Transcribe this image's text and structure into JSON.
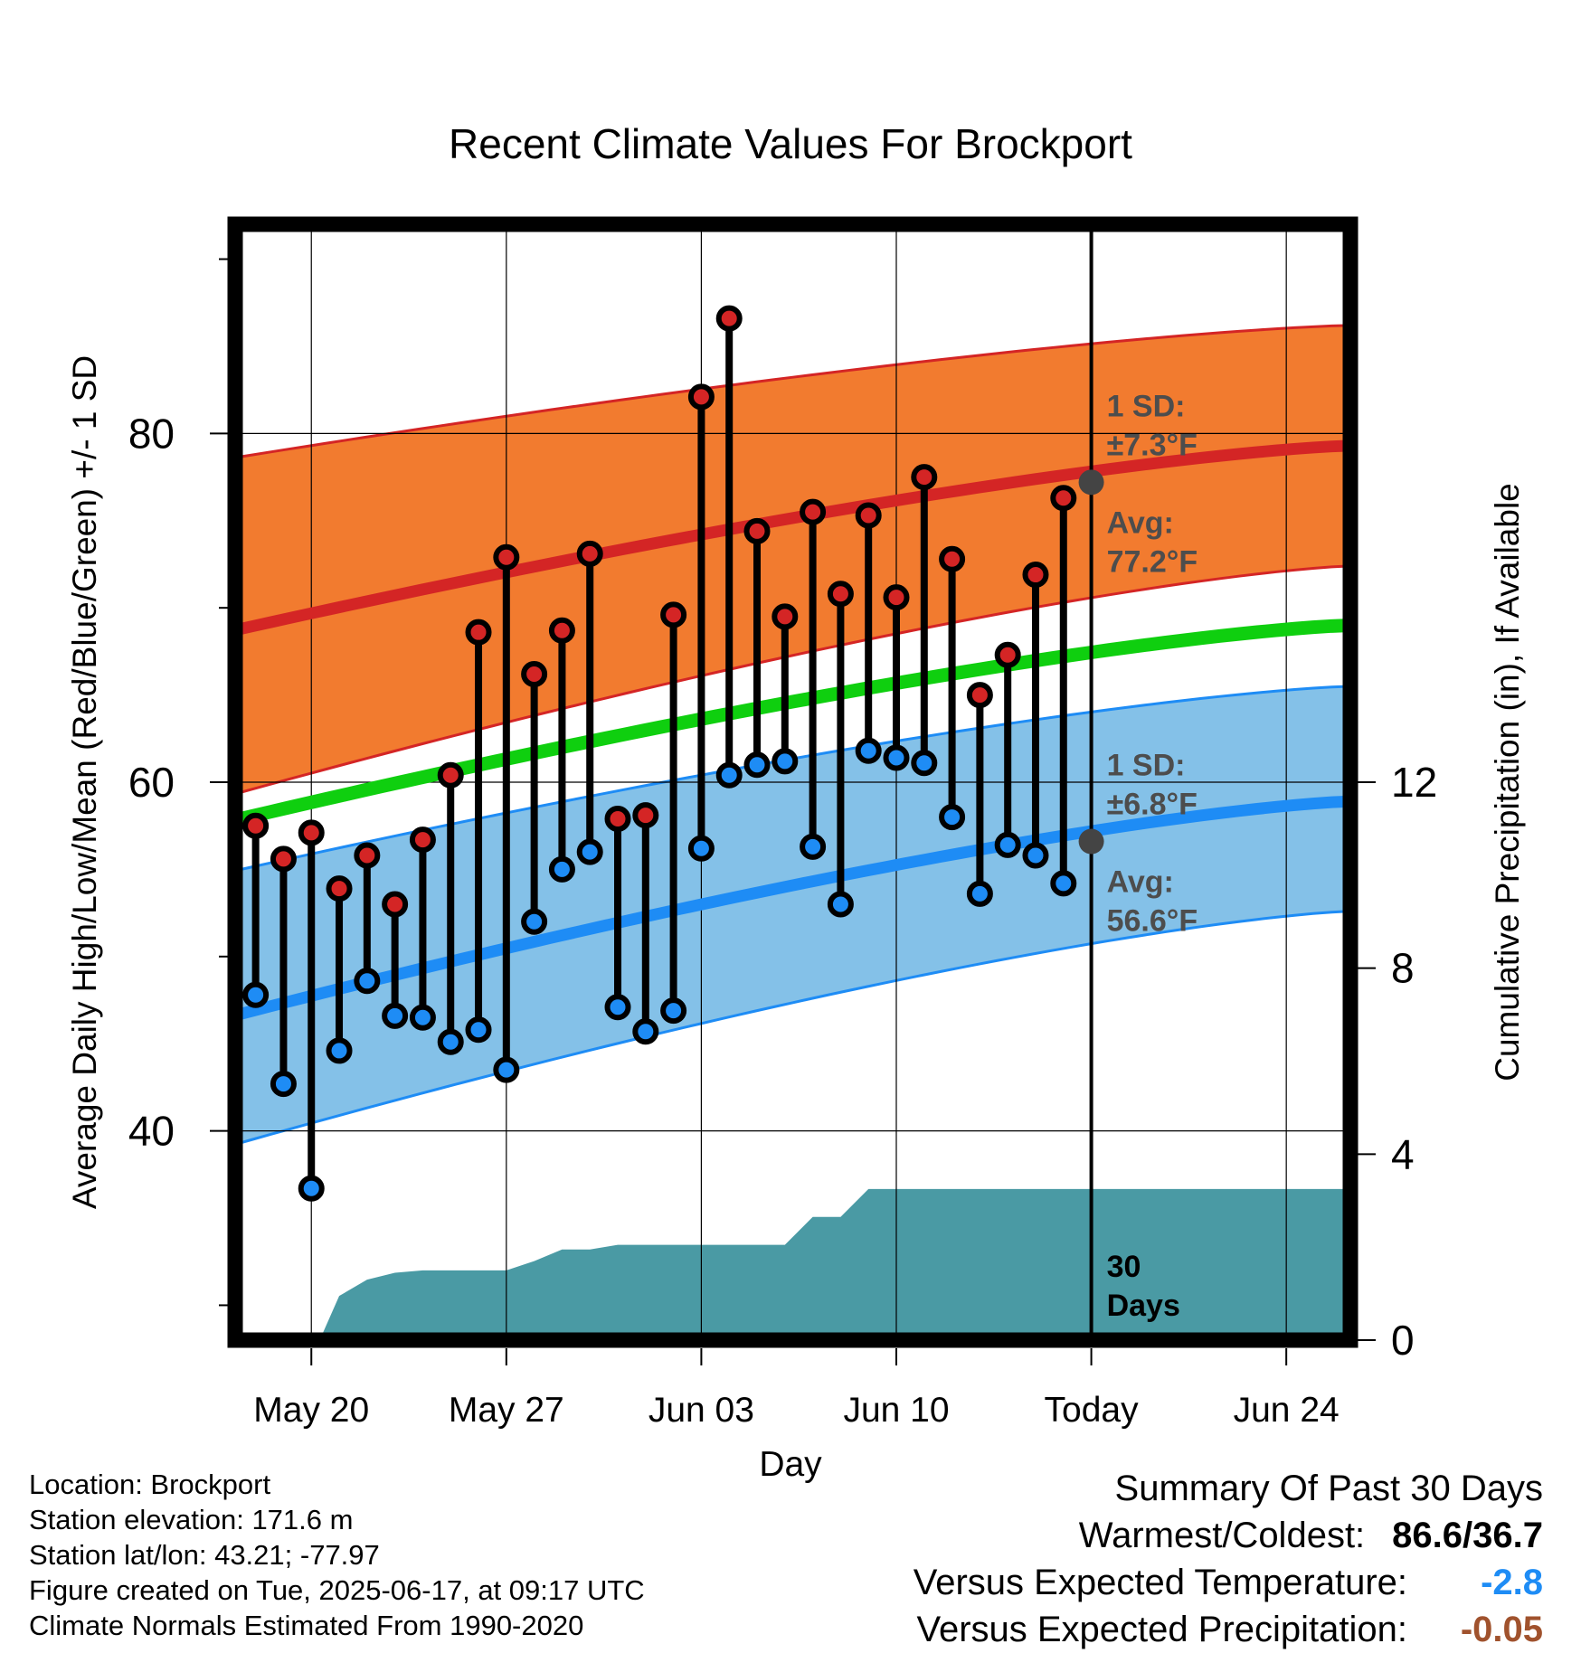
{
  "chart_data": {
    "type": "line",
    "title": "Recent Climate Values For Brockport",
    "xlabel": "Day",
    "ylabel": "Average Daily High/Low/Mean (Red/Blue/Green) +/- 1 SD",
    "y2label": "Cumulative Precipitation (in), If Available",
    "ylim": [
      28,
      92
    ],
    "y2lim": [
      0,
      24
    ],
    "y_ticks": [
      "40",
      "60",
      "80"
    ],
    "y2_ticks": [
      "0",
      "4",
      "8",
      "12"
    ],
    "x_range_day": [
      -1.8,
      38.3
    ],
    "x_ticks": [
      {
        "day": 1,
        "label": "May 20"
      },
      {
        "day": 8,
        "label": "May 27"
      },
      {
        "day": 15,
        "label": "Jun 03"
      },
      {
        "day": 22,
        "label": "Jun 10"
      },
      {
        "day": 29,
        "label": "Today"
      },
      {
        "day": 36,
        "label": "Jun 24"
      }
    ],
    "x_day_note_label": "",
    "colors": {
      "high_band": "#f27b2f",
      "high_line": "#d42525",
      "mean_line": "#0fcf0f",
      "low_band": "#84c1e8",
      "low_line": "#1e8cf5",
      "precip": "#4a9aa4",
      "today_dot": "#444444",
      "annot": "#4d4d4d"
    },
    "normals": {
      "days": [
        -1.8,
        38.3
      ],
      "high_avg": [
        68.7,
        79.3
      ],
      "high_upper": [
        78.6,
        86.2
      ],
      "high_lower": [
        59.3,
        72.4
      ],
      "mean_avg": [
        57.8,
        69.0
      ],
      "low_avg": [
        46.6,
        58.9
      ],
      "low_upper": [
        54.9,
        65.5
      ],
      "low_lower": [
        39.2,
        52.6
      ]
    },
    "series": [
      {
        "name": "High",
        "days": [
          -1,
          0,
          1,
          2,
          3,
          4,
          5,
          6,
          7,
          8,
          9,
          10,
          11,
          12,
          13,
          14,
          15,
          16,
          17,
          18,
          19,
          20,
          21,
          22,
          23,
          24,
          25,
          26,
          27,
          28
        ],
        "values": [
          57.5,
          55.6,
          57.1,
          53.9,
          55.8,
          53.0,
          56.7,
          60.4,
          68.6,
          72.9,
          66.2,
          68.7,
          73.1,
          57.9,
          58.1,
          69.6,
          82.1,
          86.6,
          74.4,
          69.5,
          75.5,
          70.8,
          75.3,
          70.6,
          77.5,
          72.8,
          65.0,
          67.3,
          71.9,
          76.3
        ]
      },
      {
        "name": "Low",
        "days": [
          -1,
          0,
          1,
          2,
          3,
          4,
          5,
          6,
          7,
          8,
          9,
          10,
          11,
          12,
          13,
          14,
          15,
          16,
          17,
          18,
          19,
          20,
          21,
          22,
          23,
          24,
          25,
          26,
          27,
          28
        ],
        "values": [
          47.8,
          42.7,
          36.7,
          44.6,
          48.6,
          46.6,
          46.5,
          45.1,
          45.8,
          43.5,
          52.0,
          55.0,
          56.0,
          47.1,
          45.7,
          46.9,
          56.2,
          60.4,
          61.0,
          61.2,
          56.3,
          53.0,
          61.8,
          61.4,
          61.1,
          58.0,
          53.6,
          56.4,
          55.8,
          54.2
        ]
      }
    ],
    "precip_cumulative": {
      "days": [
        1.3,
        2.0,
        3.0,
        4.0,
        5.0,
        6.5,
        8.0,
        9.0,
        10.0,
        11.0,
        12.0,
        13.0,
        14.0,
        15.0,
        16.0,
        17.0,
        18.0,
        19.0,
        20.0,
        21.0,
        22.0,
        29.0,
        38.3
      ],
      "values": [
        0,
        0.95,
        1.3,
        1.45,
        1.5,
        1.5,
        1.5,
        1.7,
        1.95,
        1.95,
        2.05,
        2.05,
        2.05,
        2.05,
        2.05,
        2.05,
        2.05,
        2.65,
        2.65,
        3.25,
        3.25,
        3.25,
        3.25
      ]
    },
    "today": {
      "day": 29,
      "high_avg": 77.2,
      "low_avg": 56.6
    },
    "annotations": {
      "high_sd_label": "1 SD:",
      "high_sd_value": "±7.3°F",
      "high_avg_label": "Avg:",
      "high_avg_value": "77.2°F",
      "low_sd_label": "1 SD:",
      "low_sd_value": "±6.8°F",
      "low_avg_label": "Avg:",
      "low_avg_value": "56.6°F",
      "days_label_1": "30",
      "days_label_2": "Days"
    }
  },
  "station": {
    "location": "Location: Brockport",
    "elevation": "Station elevation: 171.6 m",
    "latlon": "Station lat/lon: 43.21; -77.97",
    "created": "Figure created on Tue, 2025-06-17, at 09:17 UTC",
    "normals": "Climate Normals Estimated From 1990-2020"
  },
  "summary": {
    "title": "Summary Of Past 30 Days",
    "warm_cold_label": "Warmest/Coldest:",
    "warm_cold_value": "86.6/36.7",
    "temp_label": "Versus Expected Temperature:",
    "temp_value": "-2.8",
    "temp_color": "#1e8cf5",
    "precip_label": "Versus Expected Precipitation:",
    "precip_value": "-0.05",
    "precip_color": "#a0522d"
  }
}
